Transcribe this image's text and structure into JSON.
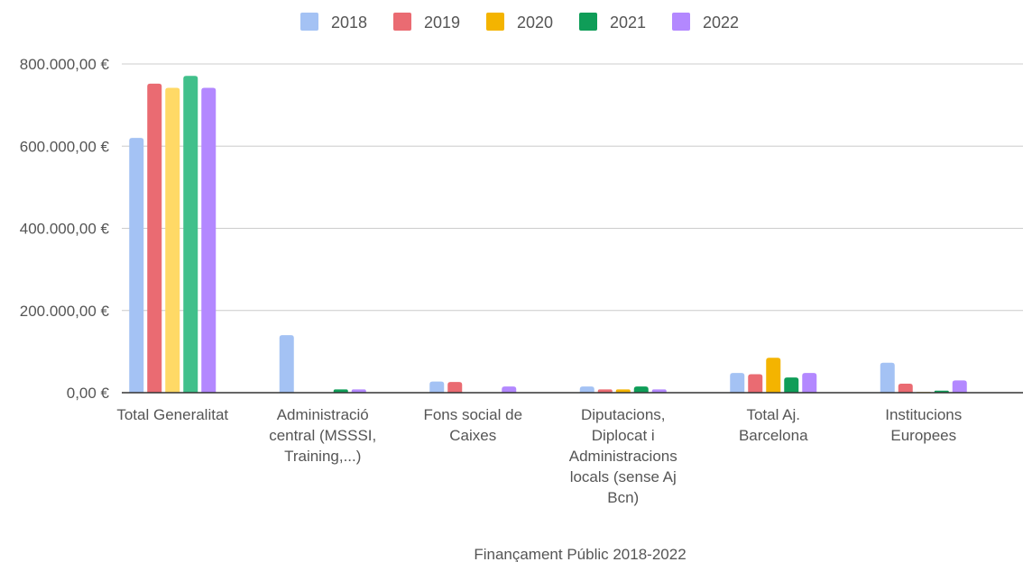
{
  "chart_data": {
    "type": "bar",
    "title": "",
    "xlabel": "Finançament Públic 2018-2022",
    "ylabel": "",
    "ylim": [
      0,
      800000
    ],
    "yticks": [
      "0,00 €",
      "200.000,00 €",
      "400.000,00 €",
      "600.000,00 €",
      "800.000,00 €"
    ],
    "ytick_values": [
      0,
      200000,
      400000,
      600000,
      800000
    ],
    "grid": true,
    "legend_position": "top",
    "categories": [
      [
        "Total Generalitat"
      ],
      [
        "Administració",
        "central (MSSSI,",
        "Training,...)"
      ],
      [
        "Fons social de",
        "Caixes"
      ],
      [
        "Diputacions,",
        "Diplocat i",
        "Administracions",
        "locals (sense Aj",
        "Bcn)"
      ],
      [
        "Total Aj.",
        "Barcelona"
      ],
      [
        "Institucions",
        "Europees"
      ]
    ],
    "series": [
      {
        "name": "2018",
        "values": [
          620000,
          140000,
          27000,
          15000,
          48000,
          73000
        ],
        "colors": [
          "#a4c2f4",
          "#a4c2f4",
          "#a4c2f4",
          "#a4c2f4",
          "#a4c2f4",
          "#a4c2f4"
        ]
      },
      {
        "name": "2019",
        "values": [
          752000,
          0,
          26000,
          8000,
          45000,
          22000
        ],
        "colors": [
          "#ea6b72",
          "#ea6b72",
          "#ea6b72",
          "#ea6b72",
          "#ea6b72",
          "#ea6b72"
        ]
      },
      {
        "name": "2020",
        "values": [
          742000,
          0,
          0,
          8000,
          85000,
          2000
        ],
        "colors": [
          "#ffd966",
          "#f4b400",
          "#f4b400",
          "#f4b400",
          "#f4b400",
          "#ffd966"
        ]
      },
      {
        "name": "2021",
        "values": [
          771000,
          8000,
          0,
          15000,
          37000,
          5000
        ],
        "colors": [
          "#41c08b",
          "#0f9d58",
          "#0f9d58",
          "#0f9d58",
          "#0f9d58",
          "#0f9d58"
        ]
      },
      {
        "name": "2022",
        "values": [
          742000,
          8000,
          15000,
          8000,
          48000,
          30000
        ],
        "colors": [
          "#b388ff",
          "#b388ff",
          "#b388ff",
          "#b388ff",
          "#b388ff",
          "#b388ff"
        ]
      }
    ],
    "legend_colors": [
      "#a4c2f4",
      "#ea6b72",
      "#f4b400",
      "#0f9d58",
      "#b388ff"
    ]
  }
}
